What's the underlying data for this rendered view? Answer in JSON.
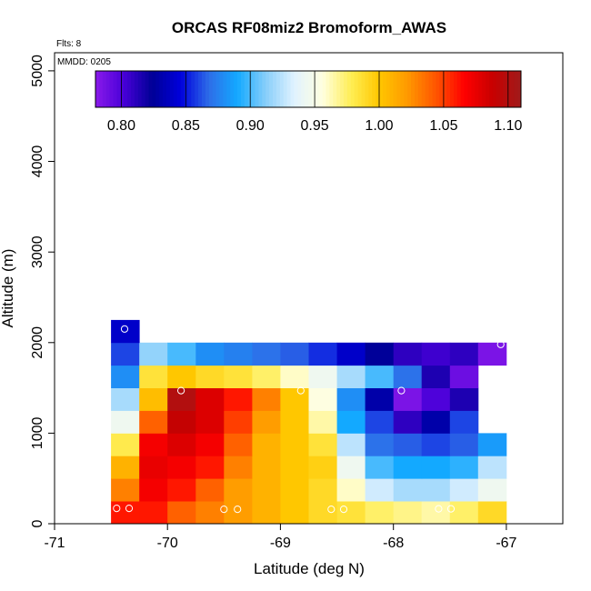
{
  "chart_data": {
    "type": "heatmap",
    "title": "ORCAS RF08miz2 Bromoform_AWAS",
    "xlabel": "Latitude (deg N)",
    "ylabel": "Altitude (m)",
    "xlim": [
      -71,
      -66.5
    ],
    "ylim": [
      0,
      5200
    ],
    "x_ticks": [
      -71,
      -70,
      -69,
      -68,
      -67
    ],
    "x_tick_labels": [
      "-71",
      "-70",
      "-69",
      "-68",
      "-67"
    ],
    "y_ticks": [
      0,
      1000,
      2000,
      3000,
      4000,
      5000
    ],
    "y_tick_labels": [
      "0",
      "1000",
      "2000",
      "3000",
      "4000",
      "5000"
    ],
    "annotations": [
      "Flts: 8",
      "MMDD: 0205"
    ],
    "colorbar": {
      "range": [
        0.78,
        1.11
      ],
      "ticks": [
        0.8,
        0.85,
        0.9,
        0.95,
        1.0,
        1.05,
        1.1
      ],
      "tick_labels": [
        "0.80",
        "0.85",
        "0.90",
        "0.95",
        "1.00",
        "1.05",
        "1.10"
      ],
      "colors": [
        "#8a1aea",
        "#4800d8",
        "#000096",
        "#0000dc",
        "#2e6de8",
        "#13a9ff",
        "#87cefa",
        "#e0f2ff",
        "#ffffe0",
        "#ffee55",
        "#ffc700",
        "#ff9900",
        "#ff5500",
        "#ff0000",
        "#c80000",
        "#a01b1b"
      ]
    },
    "lat_start": -70.5,
    "lat_step": 0.25,
    "alt_step": 250,
    "rows": [
      {
        "alt_bottom": 0,
        "values": [
          1.06,
          1.06,
          1.04,
          1.03,
          1.02,
          1.01,
          1.0,
          0.99,
          0.985,
          0.975,
          0.97,
          0.965,
          0.975,
          0.99
        ]
      },
      {
        "alt_bottom": 250,
        "values": [
          1.03,
          1.07,
          1.06,
          1.04,
          1.02,
          1.01,
          1.0,
          0.99,
          0.96,
          0.93,
          0.92,
          0.92,
          0.93,
          0.945
        ]
      },
      {
        "alt_bottom": 500,
        "values": [
          1.01,
          1.075,
          1.07,
          1.06,
          1.03,
          1.01,
          1.0,
          0.995,
          0.945,
          0.9,
          0.89,
          0.89,
          0.895,
          0.925
        ]
      },
      {
        "alt_bottom": 750,
        "values": [
          0.98,
          1.07,
          1.08,
          1.07,
          1.04,
          1.01,
          1.0,
          0.985,
          0.925,
          0.87,
          0.865,
          0.86,
          0.865,
          0.885
        ]
      },
      {
        "alt_bottom": 1000,
        "values": [
          0.945,
          1.04,
          1.09,
          1.08,
          1.05,
          1.02,
          1.0,
          0.965,
          0.89,
          0.86,
          0.81,
          0.83,
          0.86
        ]
      },
      {
        "alt_bottom": 1250,
        "values": [
          0.92,
          1.005,
          1.1,
          1.08,
          1.06,
          1.03,
          1.0,
          0.955,
          0.88,
          0.83,
          0.785,
          0.8,
          0.815
        ]
      },
      {
        "alt_bottom": 1500,
        "values": [
          0.88,
          0.985,
          1.0,
          0.99,
          0.985,
          0.975,
          0.96,
          0.945,
          0.92,
          0.9,
          0.87,
          0.815,
          0.79
        ]
      },
      {
        "alt_bottom": 1750,
        "values": [
          0.86,
          0.915,
          0.9,
          0.88,
          0.875,
          0.87,
          0.865,
          0.855,
          0.84,
          0.825,
          0.81,
          0.805,
          0.81,
          0.785
        ]
      },
      {
        "alt_bottom": 2000,
        "values": [
          0.84
        ]
      }
    ],
    "points": [
      {
        "lat": -70.45,
        "alt": 170
      },
      {
        "lat": -70.34,
        "alt": 170
      },
      {
        "lat": -69.5,
        "alt": 160
      },
      {
        "lat": -69.38,
        "alt": 160
      },
      {
        "lat": -68.55,
        "alt": 160
      },
      {
        "lat": -68.44,
        "alt": 160
      },
      {
        "lat": -67.6,
        "alt": 165
      },
      {
        "lat": -67.49,
        "alt": 165
      },
      {
        "lat": -69.88,
        "alt": 1470
      },
      {
        "lat": -68.82,
        "alt": 1470
      },
      {
        "lat": -67.93,
        "alt": 1470
      },
      {
        "lat": -70.38,
        "alt": 2150
      },
      {
        "lat": -67.05,
        "alt": 1980
      }
    ]
  }
}
